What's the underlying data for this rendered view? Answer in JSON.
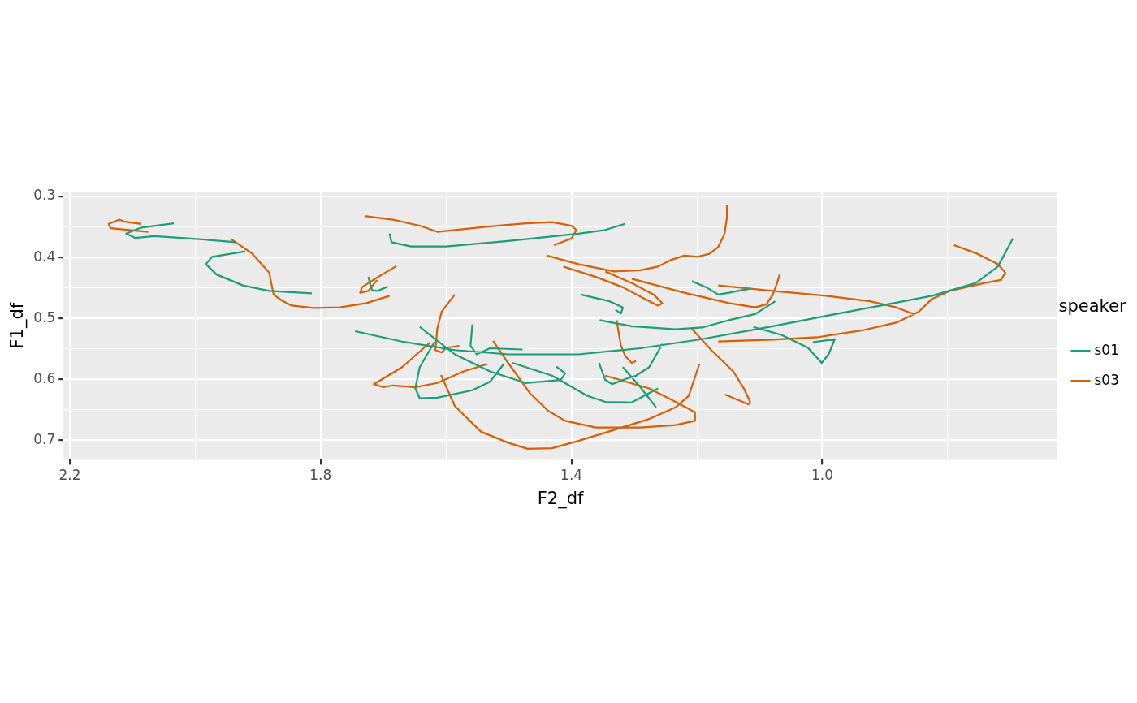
{
  "chart_data": {
    "type": "line",
    "xlabel": "F2_df",
    "ylabel": "F1_df",
    "legend_title": "speaker",
    "legend": "right",
    "grid": true,
    "xlim": [
      2.21,
      0.625
    ],
    "ylim": [
      0.732,
      0.292
    ],
    "xticks": [
      2.2,
      {
        "value": 2.0,
        "label": null
      },
      1.8,
      {
        "value": 1.6,
        "label": null
      },
      1.4,
      {
        "value": 1.2,
        "label": null
      },
      {
        "value": 1.0,
        "label": "1.0"
      },
      {
        "value": 0.8,
        "label": null
      }
    ],
    "yticks": [
      0.3,
      {
        "value": 0.35,
        "label": null
      },
      0.4,
      {
        "value": 0.45,
        "label": null
      },
      0.5,
      {
        "value": 0.55,
        "label": null
      },
      0.6,
      {
        "value": 0.65,
        "label": null
      },
      0.7
    ],
    "series": [
      {
        "name": "s01",
        "color": "#1b9e77",
        "x": [
          2.034,
          2.086,
          2.11,
          2.096,
          2.065,
          1.994,
          1.935,
          null,
          1.92,
          1.973,
          1.983,
          1.966,
          1.924,
          1.882,
          1.814,
          null,
          1.69,
          1.687,
          1.656,
          1.6,
          1.501,
          1.389,
          1.346,
          1.315,
          null,
          1.724,
          1.718,
          1.71,
          1.693,
          null,
          1.745,
          1.67,
          1.586,
          1.501,
          1.389,
          1.29,
          1.192,
          1.079,
          0.994,
          0.896,
          0.825,
          0.755,
          0.72,
          0.696,
          null,
          1.642,
          1.586,
          1.53,
          1.473,
          1.417,
          1.41,
          1.424,
          null,
          1.618,
          1.642,
          1.649,
          1.642,
          1.614,
          1.558,
          1.53,
          1.508,
          null,
          1.558,
          1.561,
          1.551,
          1.53,
          1.478,
          null,
          1.494,
          1.431,
          1.375,
          1.346,
          1.304,
          1.262,
          null,
          1.356,
          1.346,
          1.335,
          1.318,
          1.297,
          1.276,
          1.255,
          null,
          1.318,
          1.29,
          1.265,
          null,
          1.385,
          1.339,
          1.318,
          1.321,
          1.33,
          null,
          1.355,
          1.304,
          1.234,
          1.192,
          1.149,
          1.107,
          1.075,
          null,
          1.208,
          1.185,
          1.166,
          1.149,
          1.114,
          null,
          1.11,
          1.065,
          1.023,
          1.001,
          0.99,
          0.98,
          1.015
        ],
        "values": [
          0.344,
          0.351,
          0.361,
          0.368,
          0.365,
          0.37,
          0.375,
          null,
          0.39,
          0.399,
          0.411,
          0.428,
          0.446,
          0.455,
          0.459,
          null,
          0.361,
          0.375,
          0.382,
          0.382,
          0.373,
          0.361,
          0.355,
          0.345,
          null,
          0.432,
          0.454,
          0.455,
          0.448,
          null,
          0.521,
          0.538,
          0.552,
          0.559,
          0.559,
          0.549,
          0.534,
          0.513,
          0.496,
          0.477,
          0.463,
          0.442,
          0.415,
          0.369,
          null,
          0.514,
          0.559,
          0.587,
          0.606,
          0.601,
          0.59,
          0.579,
          null,
          0.538,
          0.58,
          0.615,
          0.631,
          0.63,
          0.618,
          0.604,
          0.575,
          null,
          0.51,
          0.545,
          0.559,
          0.549,
          0.551,
          null,
          0.573,
          0.594,
          0.627,
          0.637,
          0.638,
          0.615,
          null,
          0.573,
          0.601,
          0.608,
          0.601,
          0.594,
          0.58,
          0.542,
          null,
          0.58,
          0.613,
          0.646,
          null,
          0.461,
          0.472,
          0.482,
          0.492,
          0.486,
          null,
          0.503,
          0.513,
          0.518,
          0.515,
          0.503,
          0.493,
          0.472,
          null,
          0.439,
          0.449,
          0.461,
          0.458,
          0.451,
          null,
          0.514,
          0.527,
          0.548,
          0.573,
          0.559,
          0.534,
          0.539
        ]
      },
      {
        "name": "s03",
        "color": "#d95f02",
        "x": [
          2.086,
          2.114,
          2.121,
          2.138,
          2.135,
          2.075,
          null,
          1.944,
          1.91,
          1.882,
          1.875,
          1.863,
          1.846,
          1.811,
          1.769,
          1.727,
          1.69,
          null,
          1.679,
          1.713,
          1.734,
          1.737,
          1.724,
          1.71,
          null,
          1.73,
          1.685,
          1.642,
          1.614,
          1.586,
          1.53,
          1.473,
          1.431,
          1.4,
          1.392,
          1.4,
          1.428,
          null,
          1.586,
          1.607,
          1.614,
          1.617,
          1.607,
          1.6,
          1.579,
          null,
          1.625,
          1.67,
          1.715,
          1.7,
          1.685,
          1.649,
          1.614,
          1.572,
          1.534,
          null,
          1.608,
          1.586,
          1.544,
          1.501,
          1.47,
          1.431,
          1.389,
          1.332,
          1.276,
          1.234,
          1.213,
          1.196,
          null,
          1.525,
          1.501,
          1.466,
          1.438,
          1.41,
          1.361,
          1.29,
          1.234,
          1.203,
          1.203,
          1.234,
          1.276,
          1.346,
          null,
          1.439,
          1.389,
          1.332,
          1.29,
          1.262,
          1.241,
          1.22,
          1.199,
          1.18,
          1.166,
          1.156,
          1.152,
          1.152,
          null,
          1.413,
          1.361,
          1.318,
          1.283,
          1.262,
          1.255,
          1.269,
          1.304,
          1.346,
          null,
          1.304,
          1.22,
          1.149,
          1.107,
          1.089,
          1.079,
          1.072,
          1.068,
          null,
          1.328,
          1.321,
          1.314,
          1.304,
          1.297,
          null,
          1.166,
          1.079,
          0.994,
          0.924,
          0.882,
          0.854,
          null,
          1.166,
          1.079,
          1.008,
          0.938,
          0.882,
          0.846,
          0.825,
          0.797,
          0.741,
          0.715,
          0.708,
          0.72,
          0.755,
          0.79,
          null,
          1.208,
          1.177,
          1.142,
          1.125,
          1.115,
          1.118,
          1.155
        ],
        "values": [
          0.345,
          0.341,
          0.338,
          0.345,
          0.352,
          0.358,
          null,
          0.369,
          0.393,
          0.425,
          0.461,
          0.47,
          0.479,
          0.483,
          0.482,
          0.475,
          0.463,
          null,
          0.414,
          0.435,
          0.449,
          0.458,
          0.455,
          0.437,
          null,
          0.332,
          0.338,
          0.348,
          0.358,
          0.355,
          0.349,
          0.344,
          0.342,
          0.348,
          0.355,
          0.369,
          0.38,
          null,
          0.461,
          0.489,
          0.517,
          0.552,
          0.556,
          0.548,
          0.545,
          null,
          0.539,
          0.58,
          0.608,
          0.613,
          0.61,
          0.613,
          0.606,
          0.587,
          0.575,
          null,
          0.593,
          0.644,
          0.686,
          0.704,
          0.714,
          0.713,
          0.701,
          0.683,
          0.665,
          0.646,
          0.627,
          0.575,
          null,
          0.537,
          0.573,
          0.623,
          0.651,
          0.668,
          0.679,
          0.679,
          0.675,
          0.668,
          0.654,
          0.637,
          0.615,
          0.594,
          null,
          0.397,
          0.411,
          0.423,
          0.421,
          0.415,
          0.404,
          0.397,
          0.399,
          0.394,
          0.383,
          0.362,
          0.334,
          0.314,
          null,
          0.415,
          0.432,
          0.449,
          0.468,
          0.479,
          0.475,
          0.461,
          0.442,
          0.423,
          null,
          0.435,
          0.458,
          0.475,
          0.482,
          0.477,
          0.461,
          0.442,
          0.428,
          null,
          0.503,
          0.545,
          0.562,
          0.573,
          0.57,
          null,
          0.446,
          0.455,
          0.463,
          0.472,
          0.482,
          0.493,
          null,
          0.538,
          0.535,
          0.531,
          0.52,
          0.507,
          0.489,
          0.468,
          0.455,
          0.442,
          0.437,
          0.425,
          0.411,
          0.393,
          0.38,
          null,
          0.517,
          0.552,
          0.587,
          0.615,
          0.637,
          0.641,
          0.625
        ]
      }
    ]
  }
}
